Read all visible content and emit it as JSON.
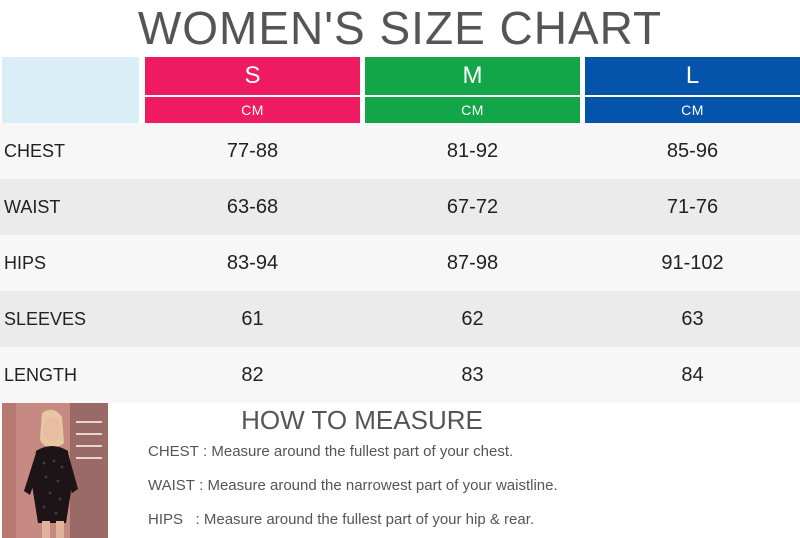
{
  "title": "WOMEN'S SIZE CHART",
  "sizes": [
    {
      "name": "S",
      "unit": "CM",
      "color": "#ee1a62"
    },
    {
      "name": "M",
      "unit": "CM",
      "color": "#13a648"
    },
    {
      "name": "L",
      "unit": "CM",
      "color": "#0554ac"
    }
  ],
  "rows": [
    {
      "label": "CHEST",
      "values": [
        "77-88",
        "81-92",
        "85-96"
      ]
    },
    {
      "label": "WAIST",
      "values": [
        "63-68",
        "67-72",
        "71-76"
      ]
    },
    {
      "label": "HIPS",
      "values": [
        "83-94",
        "87-98",
        "91-102"
      ]
    },
    {
      "label": "SLEEVES",
      "values": [
        "61",
        "62",
        "63"
      ]
    },
    {
      "label": "LENGTH",
      "values": [
        "82",
        "83",
        "84"
      ]
    }
  ],
  "how_to_measure": {
    "title": "HOW TO MEASURE",
    "items": [
      {
        "key": "CHEST :",
        "text": "Measure around the fullest part of your chest."
      },
      {
        "key": "WAIST :",
        "text": "Measure around the narrowest part of your waistline."
      },
      {
        "key": "HIPS   :",
        "text": "Measure around the fullest part of your hip & rear."
      }
    ]
  }
}
